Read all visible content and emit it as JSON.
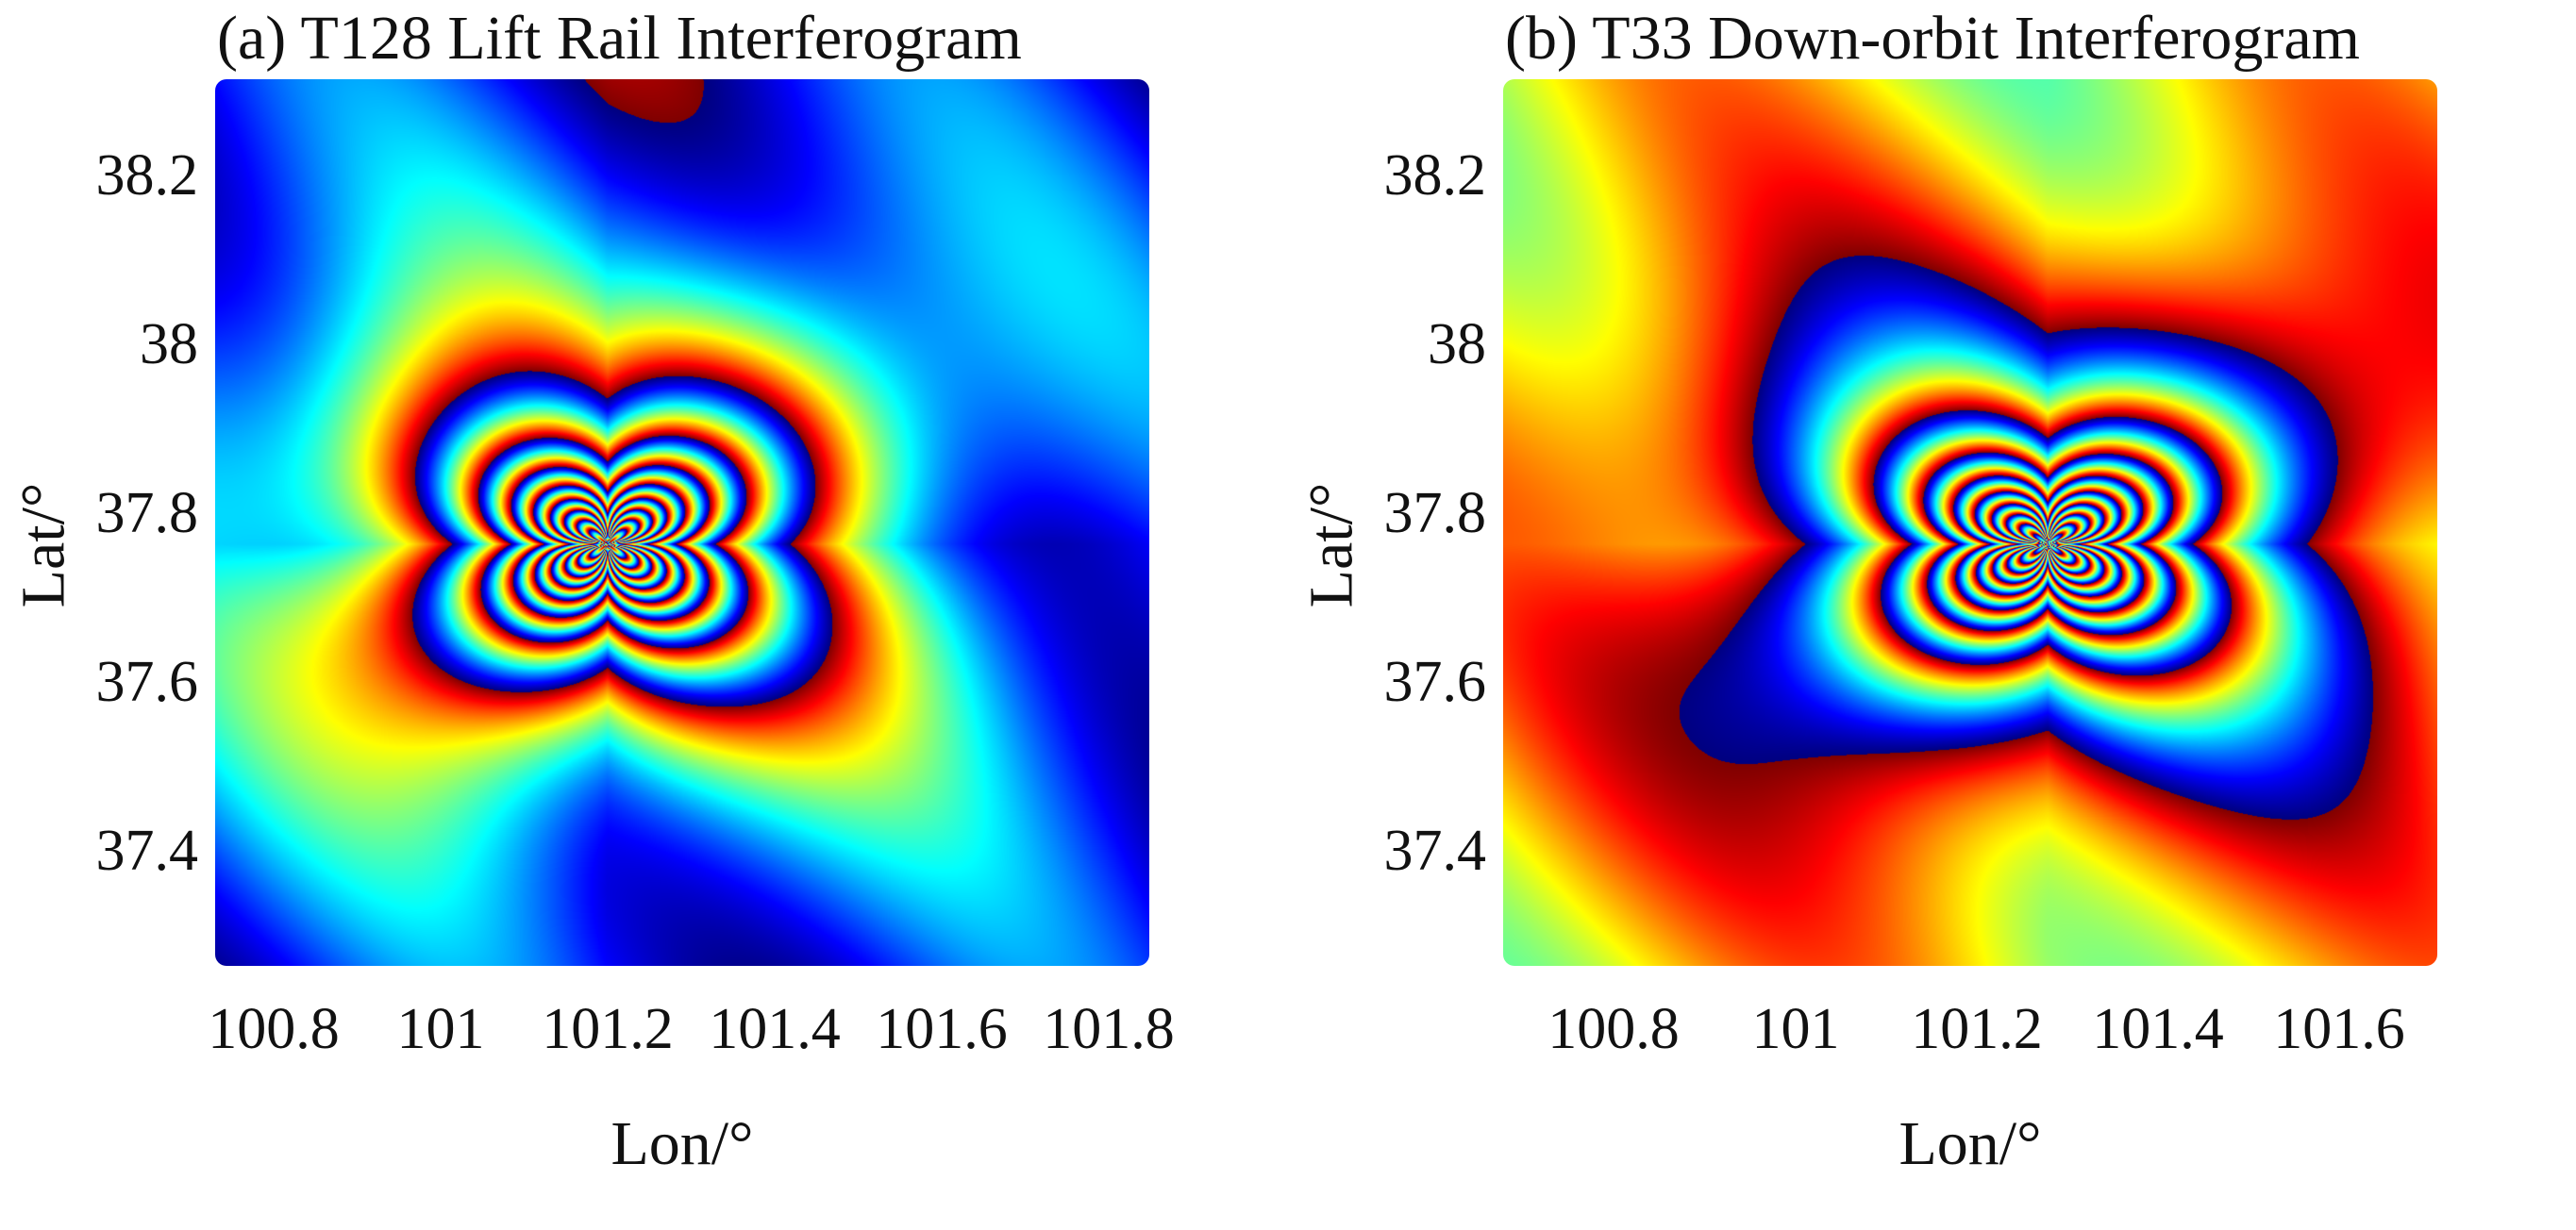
{
  "chart_data": [
    {
      "type": "heatmap",
      "title": "(a) T128 Lift Rail Interferogram",
      "xlabel": "Lon/°",
      "ylabel": "Lat/°",
      "xlim": [
        100.73,
        101.85
      ],
      "ylim": [
        37.29,
        38.34
      ],
      "xticks": [
        "100.8",
        "101",
        "101.2",
        "101.4",
        "101.6",
        "101.8"
      ],
      "xtick_values": [
        100.8,
        101.0,
        101.2,
        101.4,
        101.6,
        101.8
      ],
      "yticks": [
        "38.2",
        "38",
        "37.8",
        "37.6",
        "37.4"
      ],
      "ytick_values": [
        38.2,
        38.0,
        37.8,
        37.6,
        37.4
      ],
      "colormap": "jet",
      "epicenter": [
        101.2,
        37.79
      ],
      "fringe_phase_offset": 0.0
    },
    {
      "type": "heatmap",
      "title": "(b) T33 Down-orbit Interferogram",
      "xlabel": "Lon/°",
      "ylabel": "Lat/°",
      "xlim": [
        100.68,
        101.71
      ],
      "ylim": [
        37.29,
        38.34
      ],
      "xticks": [
        "100.8",
        "101",
        "101.2",
        "101.4",
        "101.6"
      ],
      "xtick_values": [
        100.8,
        101.0,
        101.2,
        101.4,
        101.6
      ],
      "yticks": [
        "38.2",
        "38",
        "37.8",
        "37.6",
        "37.4"
      ],
      "ytick_values": [
        38.2,
        38.0,
        37.8,
        37.6,
        37.4
      ],
      "colormap": "jet",
      "epicenter": [
        101.28,
        37.79
      ],
      "fringe_phase_offset": 0.5
    }
  ]
}
